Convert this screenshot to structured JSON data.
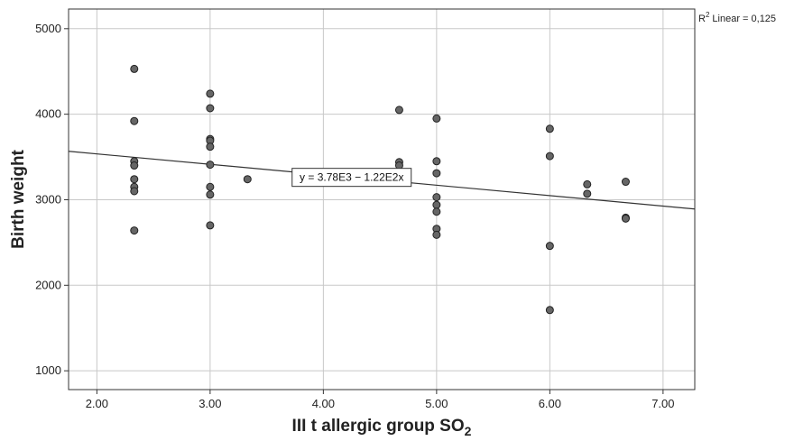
{
  "chart_data": {
    "type": "scatter",
    "xlabel": "III t allergic group SO",
    "xlabel_sub": "2",
    "ylabel": "Birth weight",
    "xlim": [
      1.75,
      7.28
    ],
    "ylim": [
      780,
      5230
    ],
    "x_ticks": [
      "2.00",
      "3.00",
      "4.00",
      "5.00",
      "6.00",
      "7.00"
    ],
    "x_tick_values": [
      2,
      3,
      4,
      5,
      6,
      7
    ],
    "y_ticks": [
      "1000",
      "2000",
      "3000",
      "4000",
      "5000"
    ],
    "y_tick_values": [
      1000,
      2000,
      3000,
      4000,
      5000
    ],
    "grid": true,
    "points": [
      {
        "x": 2.33,
        "y": 4530
      },
      {
        "x": 2.33,
        "y": 3920
      },
      {
        "x": 2.33,
        "y": 3450
      },
      {
        "x": 2.33,
        "y": 3400
      },
      {
        "x": 2.33,
        "y": 3240
      },
      {
        "x": 2.33,
        "y": 3150
      },
      {
        "x": 2.33,
        "y": 3100
      },
      {
        "x": 2.33,
        "y": 2640
      },
      {
        "x": 3.0,
        "y": 4240
      },
      {
        "x": 3.0,
        "y": 4070
      },
      {
        "x": 3.0,
        "y": 3710
      },
      {
        "x": 3.0,
        "y": 3690
      },
      {
        "x": 3.0,
        "y": 3620
      },
      {
        "x": 3.0,
        "y": 3410
      },
      {
        "x": 3.0,
        "y": 3150
      },
      {
        "x": 3.0,
        "y": 3060
      },
      {
        "x": 3.0,
        "y": 2700
      },
      {
        "x": 3.33,
        "y": 3240
      },
      {
        "x": 4.67,
        "y": 4050
      },
      {
        "x": 4.67,
        "y": 3440
      },
      {
        "x": 4.67,
        "y": 3400
      },
      {
        "x": 5.0,
        "y": 3950
      },
      {
        "x": 5.0,
        "y": 3450
      },
      {
        "x": 5.0,
        "y": 3310
      },
      {
        "x": 5.0,
        "y": 3030
      },
      {
        "x": 5.0,
        "y": 2940
      },
      {
        "x": 5.0,
        "y": 2860
      },
      {
        "x": 5.0,
        "y": 2660
      },
      {
        "x": 5.0,
        "y": 2590
      },
      {
        "x": 6.0,
        "y": 3830
      },
      {
        "x": 6.0,
        "y": 3510
      },
      {
        "x": 6.0,
        "y": 2460
      },
      {
        "x": 6.0,
        "y": 1710
      },
      {
        "x": 6.33,
        "y": 3180
      },
      {
        "x": 6.33,
        "y": 3070
      },
      {
        "x": 6.67,
        "y": 3210
      },
      {
        "x": 6.67,
        "y": 2790
      },
      {
        "x": 6.67,
        "y": 2780
      }
    ],
    "fit_line": {
      "intercept": 3780,
      "slope": -122,
      "equation_label": "y = 3.78E3 − 1.22E2x"
    },
    "r2_label": "Linear = 0,125",
    "marker_color": "#666666",
    "line_color": "#333333",
    "grid_color": "#c8c8c8"
  }
}
